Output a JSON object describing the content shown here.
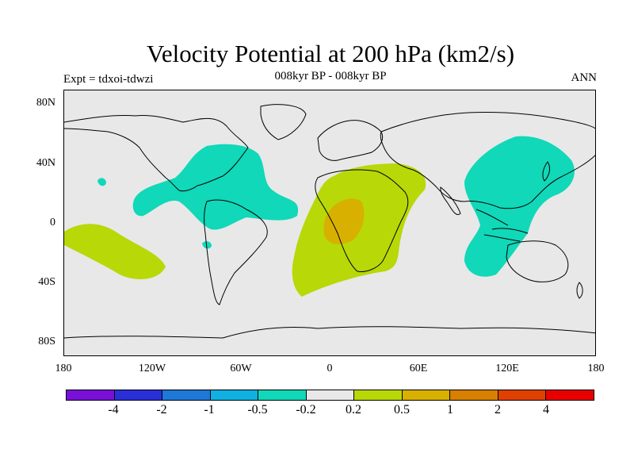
{
  "title": "Velocity Potential at 200 hPa (km2/s)",
  "subtitle": "008kyr BP - 008kyr BP",
  "experiment": "Expt = tdxoi-tdwzi",
  "season": "ANN",
  "colors": {
    "ocean_land_background": "#e8e8e8",
    "coastline": "#000000"
  },
  "lat_ticks": [
    "80N",
    "40N",
    "0",
    "40S",
    "80S"
  ],
  "lon_ticks": [
    "180",
    "120W",
    "60W",
    "0",
    "60E",
    "120E",
    "180"
  ],
  "colorbar": {
    "colors": [
      "#7a10d8",
      "#2a2fd8",
      "#1e78d8",
      "#10b0e0",
      "#10d8b8",
      "#e8e8e8",
      "#b8d808",
      "#d8b000",
      "#d88000",
      "#e04000",
      "#e80000"
    ],
    "labels": [
      "-4",
      "-2",
      "-1",
      "-0.5",
      "-0.2",
      "0.2",
      "0.5",
      "1",
      "2",
      "4"
    ]
  },
  "chart_data": {
    "type": "heatmap",
    "title": "Velocity Potential at 200 hPa (km2/s)",
    "subtitle": "008kyr BP - 008kyr BP",
    "xlabel": "",
    "ylabel": "",
    "xlim": [
      -180,
      180
    ],
    "ylim": [
      -90,
      90
    ],
    "levels": [
      -4,
      -2,
      -1,
      -0.5,
      -0.2,
      0.2,
      0.5,
      1,
      2,
      4
    ],
    "anomaly_regions": [
      {
        "region": "North America / North Atlantic",
        "range": "-0.5 to -0.2"
      },
      {
        "region": "East Asia / Western Pacific / Maritime Continent",
        "range": "-0.5 to -0.2"
      },
      {
        "region": "Africa / Arabia",
        "range": "0.2 to 0.5"
      },
      {
        "region": "Central Africa",
        "range": "0.5 to 1"
      },
      {
        "region": "Central Pacific (South)",
        "range": "0.2 to 0.5"
      }
    ]
  }
}
